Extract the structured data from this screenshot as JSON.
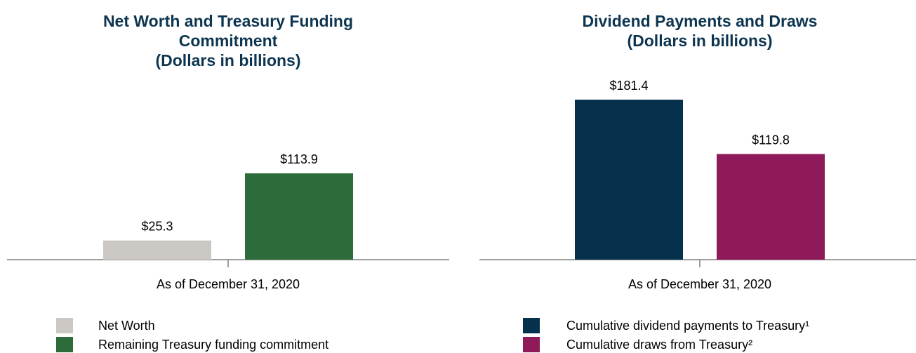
{
  "chart_data": [
    {
      "type": "bar",
      "title": "Net Worth and Treasury Funding Commitment",
      "subtitle": "(Dollars in billions)",
      "categories": [
        "As of December 31, 2020"
      ],
      "series": [
        {
          "name": "Net Worth",
          "color": "#cbc8c3",
          "values": [
            25.3
          ],
          "value_labels": [
            "$25.3"
          ]
        },
        {
          "name": "Remaining Treasury funding commitment",
          "color": "#2e6b3a",
          "values": [
            113.9
          ],
          "value_labels": [
            "$113.9"
          ]
        }
      ]
    },
    {
      "type": "bar",
      "title": "Dividend Payments and Draws",
      "subtitle": "(Dollars in billions)",
      "categories": [
        "As of December 31, 2020"
      ],
      "series": [
        {
          "name": "Cumulative dividend payments to Treasury¹",
          "color": "#06314c",
          "values": [
            181.4
          ],
          "value_labels": [
            "$181.4"
          ]
        },
        {
          "name": "Cumulative draws from Treasury²",
          "color": "#8e1a59",
          "values": [
            119.8
          ],
          "value_labels": [
            "$119.8"
          ]
        }
      ]
    }
  ]
}
